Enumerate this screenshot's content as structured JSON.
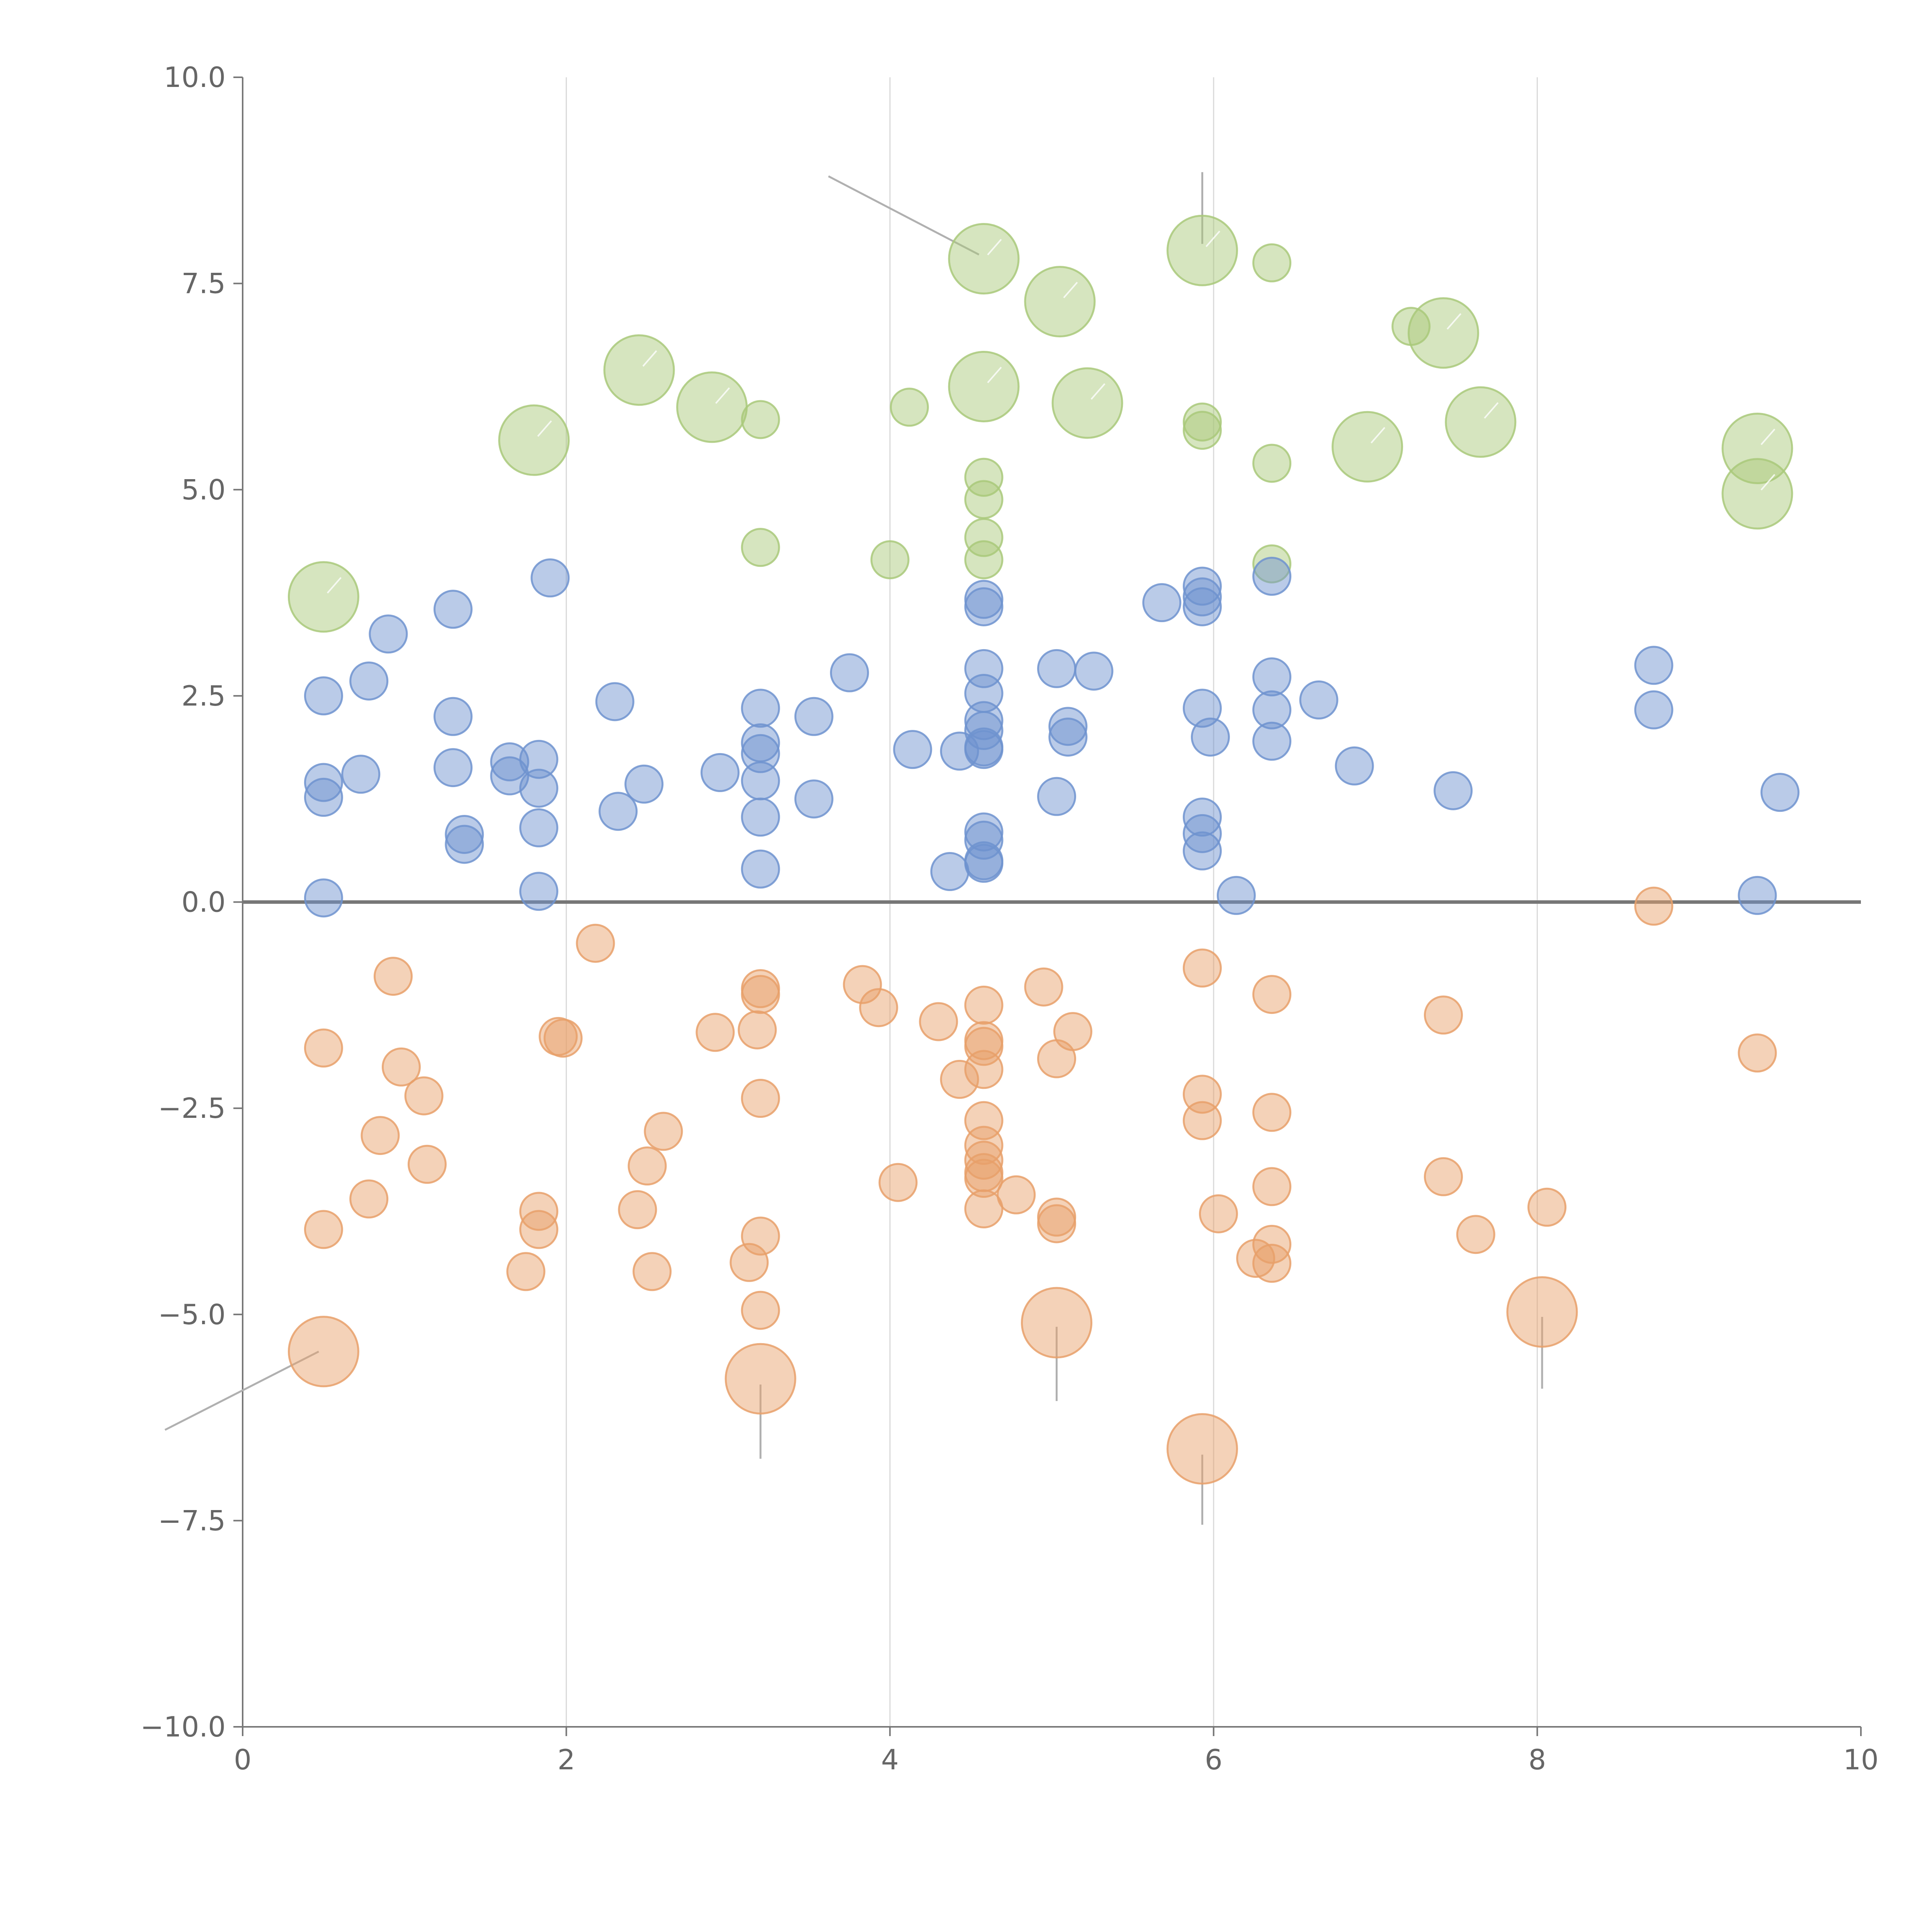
{
  "chart_data": {
    "type": "scatter",
    "title": "",
    "xlabel": "",
    "ylabel": "",
    "xlim": [
      0,
      10
    ],
    "ylim": [
      -10,
      10
    ],
    "grid": "vertical",
    "x_ticks": [
      0,
      2,
      4,
      6,
      8,
      10
    ],
    "x_tick_labels": [
      "0",
      "2",
      "4",
      "6",
      "8",
      "10"
    ],
    "y_ticks": [
      -10,
      -7.5,
      -5,
      -2.5,
      0,
      2.5,
      5,
      7.5,
      10
    ],
    "y_tick_labels": [
      "−10.0",
      "−7.5",
      "−5.0",
      "−2.5",
      "0.0",
      "2.5",
      "5.0",
      "7.5",
      "10.0"
    ],
    "colors": {
      "green": "#a9c97a",
      "blue": "#6f93cf",
      "orange": "#e8a06a",
      "axis": "#777777",
      "grid": "#d9d9d9",
      "text": "#666666"
    },
    "series": [
      {
        "name": "green",
        "color": "#a9c97a",
        "points": [
          {
            "x": 0.5,
            "y": 3.7,
            "s": 2
          },
          {
            "x": 1.8,
            "y": 5.6,
            "s": 2
          },
          {
            "x": 2.45,
            "y": 6.45,
            "s": 2
          },
          {
            "x": 2.9,
            "y": 6.0,
            "s": 2
          },
          {
            "x": 3.2,
            "y": 5.85,
            "s": 1
          },
          {
            "x": 3.2,
            "y": 4.3,
            "s": 1
          },
          {
            "x": 4.0,
            "y": 4.15,
            "s": 1
          },
          {
            "x": 4.12,
            "y": 6.0,
            "s": 1
          },
          {
            "x": 4.58,
            "y": 7.8,
            "s": 2
          },
          {
            "x": 4.58,
            "y": 6.25,
            "s": 2
          },
          {
            "x": 4.58,
            "y": 5.15,
            "s": 1
          },
          {
            "x": 4.58,
            "y": 4.88,
            "s": 1
          },
          {
            "x": 4.58,
            "y": 4.42,
            "s": 1
          },
          {
            "x": 4.58,
            "y": 4.15,
            "s": 1
          },
          {
            "x": 5.05,
            "y": 7.28,
            "s": 2
          },
          {
            "x": 5.22,
            "y": 6.05,
            "s": 2
          },
          {
            "x": 5.93,
            "y": 7.9,
            "s": 2
          },
          {
            "x": 5.93,
            "y": 5.82,
            "s": 1
          },
          {
            "x": 5.93,
            "y": 5.72,
            "s": 1
          },
          {
            "x": 6.36,
            "y": 7.75,
            "s": 1
          },
          {
            "x": 6.36,
            "y": 5.32,
            "s": 1
          },
          {
            "x": 6.36,
            "y": 4.1,
            "s": 1
          },
          {
            "x": 6.95,
            "y": 5.52,
            "s": 2
          },
          {
            "x": 7.22,
            "y": 6.98,
            "s": 1
          },
          {
            "x": 7.42,
            "y": 6.9,
            "s": 2
          },
          {
            "x": 7.65,
            "y": 5.82,
            "s": 2
          },
          {
            "x": 9.36,
            "y": 5.5,
            "s": 2
          },
          {
            "x": 9.36,
            "y": 4.95,
            "s": 2
          }
        ]
      },
      {
        "name": "blue",
        "color": "#6f93cf",
        "points": [
          {
            "x": 0.5,
            "y": 2.5,
            "s": 1
          },
          {
            "x": 0.5,
            "y": 1.45,
            "s": 1
          },
          {
            "x": 0.5,
            "y": 1.27,
            "s": 1
          },
          {
            "x": 0.5,
            "y": 0.05,
            "s": 1
          },
          {
            "x": 0.73,
            "y": 1.55,
            "s": 1
          },
          {
            "x": 0.78,
            "y": 2.68,
            "s": 1
          },
          {
            "x": 0.9,
            "y": 3.25,
            "s": 1
          },
          {
            "x": 1.3,
            "y": 3.55,
            "s": 1
          },
          {
            "x": 1.3,
            "y": 2.25,
            "s": 1
          },
          {
            "x": 1.3,
            "y": 1.63,
            "s": 1
          },
          {
            "x": 1.37,
            "y": 0.82,
            "s": 1
          },
          {
            "x": 1.37,
            "y": 0.7,
            "s": 1
          },
          {
            "x": 1.65,
            "y": 1.7,
            "s": 1
          },
          {
            "x": 1.65,
            "y": 1.53,
            "s": 1
          },
          {
            "x": 1.83,
            "y": 1.73,
            "s": 1
          },
          {
            "x": 1.83,
            "y": 1.38,
            "s": 1
          },
          {
            "x": 1.83,
            "y": 0.9,
            "s": 1
          },
          {
            "x": 1.83,
            "y": 0.13,
            "s": 1
          },
          {
            "x": 1.9,
            "y": 3.93,
            "s": 1
          },
          {
            "x": 2.3,
            "y": 2.43,
            "s": 1
          },
          {
            "x": 2.32,
            "y": 1.1,
            "s": 1
          },
          {
            "x": 2.48,
            "y": 1.43,
            "s": 1
          },
          {
            "x": 2.95,
            "y": 1.57,
            "s": 1
          },
          {
            "x": 3.2,
            "y": 2.35,
            "s": 1
          },
          {
            "x": 3.2,
            "y": 1.93,
            "s": 1
          },
          {
            "x": 3.2,
            "y": 1.8,
            "s": 1
          },
          {
            "x": 3.2,
            "y": 1.47,
            "s": 1
          },
          {
            "x": 3.2,
            "y": 1.03,
            "s": 1
          },
          {
            "x": 3.2,
            "y": 0.4,
            "s": 1
          },
          {
            "x": 3.53,
            "y": 2.25,
            "s": 1
          },
          {
            "x": 3.53,
            "y": 1.25,
            "s": 1
          },
          {
            "x": 3.75,
            "y": 2.78,
            "s": 1
          },
          {
            "x": 4.14,
            "y": 1.85,
            "s": 1
          },
          {
            "x": 4.37,
            "y": 0.37,
            "s": 1
          },
          {
            "x": 4.43,
            "y": 1.83,
            "s": 1
          },
          {
            "x": 4.58,
            "y": 3.67,
            "s": 1
          },
          {
            "x": 4.58,
            "y": 3.58,
            "s": 1
          },
          {
            "x": 4.58,
            "y": 2.83,
            "s": 1
          },
          {
            "x": 4.58,
            "y": 2.53,
            "s": 1
          },
          {
            "x": 4.58,
            "y": 2.2,
            "s": 1
          },
          {
            "x": 4.58,
            "y": 2.08,
            "s": 1
          },
          {
            "x": 4.58,
            "y": 1.88,
            "s": 1
          },
          {
            "x": 4.58,
            "y": 1.85,
            "s": 1
          },
          {
            "x": 4.58,
            "y": 0.85,
            "s": 1
          },
          {
            "x": 4.58,
            "y": 0.75,
            "s": 1
          },
          {
            "x": 4.58,
            "y": 0.5,
            "s": 1
          },
          {
            "x": 4.58,
            "y": 0.47,
            "s": 1
          },
          {
            "x": 5.03,
            "y": 2.83,
            "s": 1
          },
          {
            "x": 5.03,
            "y": 1.28,
            "s": 1
          },
          {
            "x": 5.1,
            "y": 2.13,
            "s": 1
          },
          {
            "x": 5.1,
            "y": 2.0,
            "s": 1
          },
          {
            "x": 5.26,
            "y": 2.8,
            "s": 1
          },
          {
            "x": 5.68,
            "y": 3.63,
            "s": 1
          },
          {
            "x": 5.93,
            "y": 3.83,
            "s": 1
          },
          {
            "x": 5.93,
            "y": 3.7,
            "s": 1
          },
          {
            "x": 5.93,
            "y": 3.58,
            "s": 1
          },
          {
            "x": 5.93,
            "y": 2.35,
            "s": 1
          },
          {
            "x": 5.93,
            "y": 1.03,
            "s": 1
          },
          {
            "x": 5.93,
            "y": 0.83,
            "s": 1
          },
          {
            "x": 5.93,
            "y": 0.62,
            "s": 1
          },
          {
            "x": 5.98,
            "y": 2.0,
            "s": 1
          },
          {
            "x": 6.14,
            "y": 0.08,
            "s": 1
          },
          {
            "x": 6.36,
            "y": 3.95,
            "s": 1
          },
          {
            "x": 6.36,
            "y": 2.73,
            "s": 1
          },
          {
            "x": 6.36,
            "y": 2.33,
            "s": 1
          },
          {
            "x": 6.36,
            "y": 1.95,
            "s": 1
          },
          {
            "x": 6.65,
            "y": 2.45,
            "s": 1
          },
          {
            "x": 6.87,
            "y": 1.65,
            "s": 1
          },
          {
            "x": 7.48,
            "y": 1.35,
            "s": 1
          },
          {
            "x": 8.72,
            "y": 2.87,
            "s": 1
          },
          {
            "x": 8.72,
            "y": 2.33,
            "s": 1
          },
          {
            "x": 9.36,
            "y": 0.08,
            "s": 1
          },
          {
            "x": 9.5,
            "y": 1.33,
            "s": 1
          }
        ]
      },
      {
        "name": "orange",
        "color": "#e8a06a",
        "points": [
          {
            "x": 0.5,
            "y": -1.77,
            "s": 1
          },
          {
            "x": 0.5,
            "y": -3.97,
            "s": 1
          },
          {
            "x": 0.5,
            "y": -5.45,
            "s": 2
          },
          {
            "x": 0.78,
            "y": -3.6,
            "s": 1
          },
          {
            "x": 0.85,
            "y": -2.83,
            "s": 1
          },
          {
            "x": 0.93,
            "y": -0.9,
            "s": 1
          },
          {
            "x": 0.98,
            "y": -2.0,
            "s": 1
          },
          {
            "x": 1.12,
            "y": -2.35,
            "s": 1
          },
          {
            "x": 1.14,
            "y": -3.18,
            "s": 1
          },
          {
            "x": 1.75,
            "y": -4.48,
            "s": 1
          },
          {
            "x": 1.83,
            "y": -3.75,
            "s": 1
          },
          {
            "x": 1.83,
            "y": -3.97,
            "s": 1
          },
          {
            "x": 1.95,
            "y": -1.63,
            "s": 1
          },
          {
            "x": 1.98,
            "y": -1.65,
            "s": 1
          },
          {
            "x": 2.18,
            "y": -0.5,
            "s": 1
          },
          {
            "x": 2.44,
            "y": -3.73,
            "s": 1
          },
          {
            "x": 2.5,
            "y": -3.2,
            "s": 1
          },
          {
            "x": 2.53,
            "y": -4.48,
            "s": 1
          },
          {
            "x": 2.6,
            "y": -2.78,
            "s": 1
          },
          {
            "x": 2.92,
            "y": -1.58,
            "s": 1
          },
          {
            "x": 3.13,
            "y": -4.37,
            "s": 1
          },
          {
            "x": 3.18,
            "y": -1.55,
            "s": 1
          },
          {
            "x": 3.2,
            "y": -1.05,
            "s": 1
          },
          {
            "x": 3.2,
            "y": -1.12,
            "s": 1
          },
          {
            "x": 3.2,
            "y": -2.38,
            "s": 1
          },
          {
            "x": 3.2,
            "y": -4.05,
            "s": 1
          },
          {
            "x": 3.2,
            "y": -4.95,
            "s": 1
          },
          {
            "x": 3.2,
            "y": -5.78,
            "s": 2
          },
          {
            "x": 3.83,
            "y": -1.0,
            "s": 1
          },
          {
            "x": 3.93,
            "y": -1.28,
            "s": 1
          },
          {
            "x": 4.05,
            "y": -3.4,
            "s": 1
          },
          {
            "x": 4.3,
            "y": -1.45,
            "s": 1
          },
          {
            "x": 4.43,
            "y": -2.15,
            "s": 1
          },
          {
            "x": 4.58,
            "y": -1.25,
            "s": 1
          },
          {
            "x": 4.58,
            "y": -1.68,
            "s": 1
          },
          {
            "x": 4.58,
            "y": -1.75,
            "s": 1
          },
          {
            "x": 4.58,
            "y": -2.03,
            "s": 1
          },
          {
            "x": 4.58,
            "y": -2.65,
            "s": 1
          },
          {
            "x": 4.58,
            "y": -2.95,
            "s": 1
          },
          {
            "x": 4.58,
            "y": -3.13,
            "s": 1
          },
          {
            "x": 4.58,
            "y": -3.28,
            "s": 1
          },
          {
            "x": 4.58,
            "y": -3.35,
            "s": 1
          },
          {
            "x": 4.58,
            "y": -3.72,
            "s": 1
          },
          {
            "x": 4.78,
            "y": -3.55,
            "s": 1
          },
          {
            "x": 4.95,
            "y": -1.03,
            "s": 1
          },
          {
            "x": 5.03,
            "y": -1.9,
            "s": 1
          },
          {
            "x": 5.03,
            "y": -3.82,
            "s": 1
          },
          {
            "x": 5.03,
            "y": -3.9,
            "s": 1
          },
          {
            "x": 5.03,
            "y": -5.1,
            "s": 2
          },
          {
            "x": 5.13,
            "y": -1.57,
            "s": 1
          },
          {
            "x": 5.93,
            "y": -0.8,
            "s": 1
          },
          {
            "x": 5.93,
            "y": -2.33,
            "s": 1
          },
          {
            "x": 5.93,
            "y": -2.65,
            "s": 1
          },
          {
            "x": 5.93,
            "y": -6.63,
            "s": 2
          },
          {
            "x": 6.03,
            "y": -3.78,
            "s": 1
          },
          {
            "x": 6.26,
            "y": -4.32,
            "s": 1
          },
          {
            "x": 6.36,
            "y": -1.12,
            "s": 1
          },
          {
            "x": 6.36,
            "y": -2.55,
            "s": 1
          },
          {
            "x": 6.36,
            "y": -3.45,
            "s": 1
          },
          {
            "x": 6.36,
            "y": -4.15,
            "s": 1
          },
          {
            "x": 6.36,
            "y": -4.38,
            "s": 1
          },
          {
            "x": 7.42,
            "y": -1.37,
            "s": 1
          },
          {
            "x": 7.42,
            "y": -3.33,
            "s": 1
          },
          {
            "x": 7.62,
            "y": -4.03,
            "s": 1
          },
          {
            "x": 8.03,
            "y": -4.97,
            "s": 2
          },
          {
            "x": 8.06,
            "y": -3.7,
            "s": 1
          },
          {
            "x": 8.72,
            "y": -0.05,
            "s": 1
          },
          {
            "x": 9.36,
            "y": -1.83,
            "s": 1
          }
        ]
      }
    ],
    "leader_lines": [
      {
        "x1": 3.62,
        "y1": 8.8,
        "x2": 4.55,
        "y2": 7.85
      },
      {
        "x1": 5.93,
        "y1": 8.85,
        "x2": 5.93,
        "y2": 7.98
      },
      {
        "x1": -0.48,
        "y1": -6.4,
        "x2": 0.47,
        "y2": -5.45
      },
      {
        "x1": 3.2,
        "y1": -5.85,
        "x2": 3.2,
        "y2": -6.75
      },
      {
        "x1": 5.03,
        "y1": -5.15,
        "x2": 5.03,
        "y2": -6.05
      },
      {
        "x1": 5.93,
        "y1": -6.7,
        "x2": 5.93,
        "y2": -7.55
      },
      {
        "x1": 8.03,
        "y1": -5.03,
        "x2": 8.03,
        "y2": -5.9
      }
    ]
  }
}
